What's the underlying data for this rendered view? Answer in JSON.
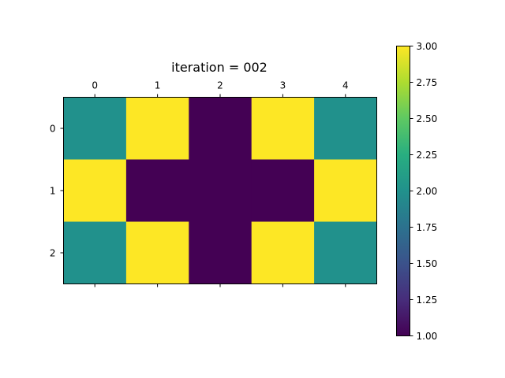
{
  "chart_data": {
    "type": "heatmap",
    "title": "iteration = 002",
    "x_ticks": [
      "0",
      "1",
      "2",
      "3",
      "4"
    ],
    "y_ticks": [
      "0",
      "1",
      "2"
    ],
    "values": [
      [
        2,
        3,
        1,
        3,
        2
      ],
      [
        3,
        1,
        1,
        1,
        3
      ],
      [
        2,
        3,
        1,
        3,
        2
      ]
    ],
    "colormap": "viridis",
    "colorbar": {
      "min": 1.0,
      "max": 3.0,
      "ticks": [
        "1.00",
        "1.25",
        "1.50",
        "1.75",
        "2.00",
        "2.25",
        "2.50",
        "2.75",
        "3.00"
      ]
    }
  }
}
